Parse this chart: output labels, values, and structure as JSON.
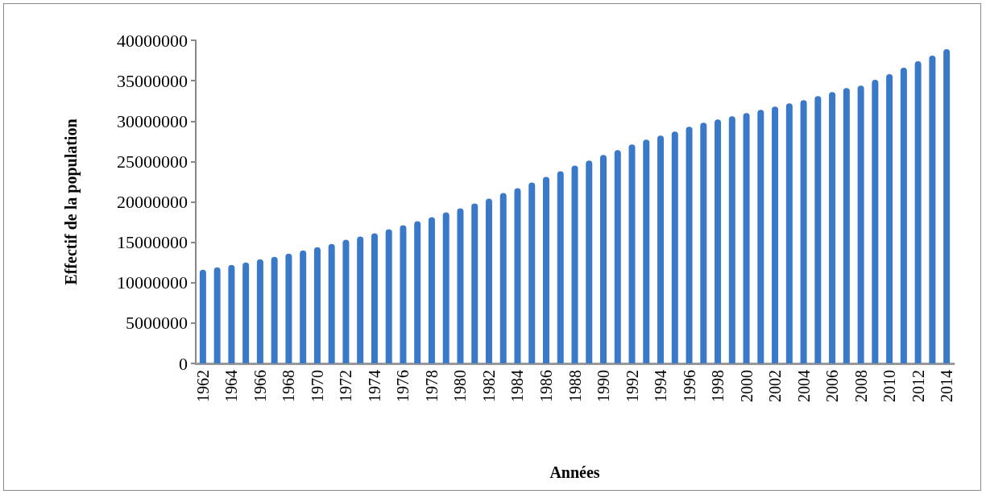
{
  "chart_data": {
    "type": "bar",
    "xlabel": "Années",
    "ylabel": "Effectif de la population",
    "categories": [
      "1962",
      null,
      "1964",
      null,
      "1966",
      null,
      "1968",
      null,
      "1970",
      null,
      "1972",
      null,
      "1974",
      null,
      "1976",
      null,
      "1978",
      null,
      "1980",
      null,
      "1982",
      null,
      "1984",
      null,
      "1986",
      null,
      "1988",
      null,
      "1990",
      null,
      "1992",
      null,
      "1994",
      null,
      "1996",
      null,
      "1998",
      null,
      "2000",
      null,
      "2002",
      null,
      "2004",
      null,
      "2006",
      null,
      "2008",
      null,
      "2010",
      null,
      "2012",
      null,
      "2014"
    ],
    "values": [
      11600000,
      11900000,
      12200000,
      12500000,
      12900000,
      13200000,
      13600000,
      14000000,
      14400000,
      14800000,
      15300000,
      15700000,
      16100000,
      16600000,
      17100000,
      17600000,
      18100000,
      18700000,
      19200000,
      19800000,
      20400000,
      21100000,
      21700000,
      22400000,
      23100000,
      23800000,
      24500000,
      25100000,
      25800000,
      26400000,
      27100000,
      27700000,
      28200000,
      28700000,
      29300000,
      29800000,
      30200000,
      30600000,
      31000000,
      31400000,
      31800000,
      32200000,
      32600000,
      33100000,
      33600000,
      34100000,
      34400000,
      35100000,
      35800000,
      36600000,
      37400000,
      38100000,
      38900000
    ],
    "color": "#3a78c8",
    "ylim": [
      0,
      40000000
    ],
    "yticks": [
      0,
      5000000,
      10000000,
      15000000,
      20000000,
      25000000,
      30000000,
      35000000,
      40000000
    ],
    "grid": false
  }
}
